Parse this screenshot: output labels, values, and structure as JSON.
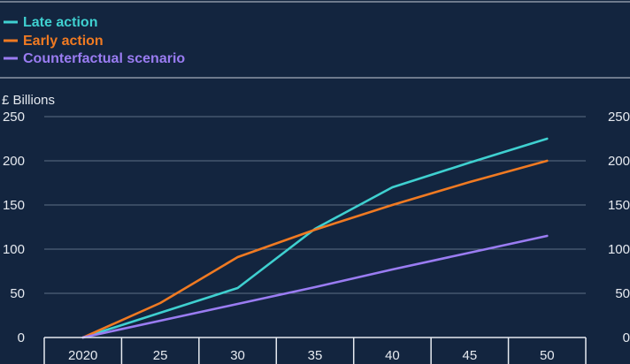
{
  "colors": {
    "background": "#13253f",
    "late_action": "#3fd0d0",
    "early_action": "#f07a22",
    "counterfactual": "#9a7cf2"
  },
  "chart_data": {
    "type": "line",
    "title": "",
    "unit_label": "£ Billions",
    "xlabel": "",
    "ylabel": "",
    "x": [
      2020,
      2025,
      2030,
      2035,
      2040,
      2045,
      2050
    ],
    "x_tick_labels": [
      "2020",
      "25",
      "30",
      "35",
      "40",
      "45",
      "50"
    ],
    "xlim": [
      2017.5,
      2052.5
    ],
    "ylim": [
      0,
      250
    ],
    "y_ticks": [
      0,
      50,
      100,
      150,
      200,
      250
    ],
    "y_tick_labels": [
      "0",
      "50",
      "100",
      "150",
      "200",
      "250"
    ],
    "grid": true,
    "legend_position": "top-left",
    "series": [
      {
        "name": "Late action",
        "color": "#3fd0d0",
        "values": [
          0,
          28,
          56,
          123,
          170,
          198,
          225
        ]
      },
      {
        "name": "Early action",
        "color": "#f07a22",
        "values": [
          0,
          39,
          91,
          122,
          150,
          176,
          200
        ]
      },
      {
        "name": "Counterfactual scenario",
        "color": "#9a7cf2",
        "values": [
          0,
          19,
          38,
          57,
          77,
          96,
          115
        ]
      }
    ]
  }
}
